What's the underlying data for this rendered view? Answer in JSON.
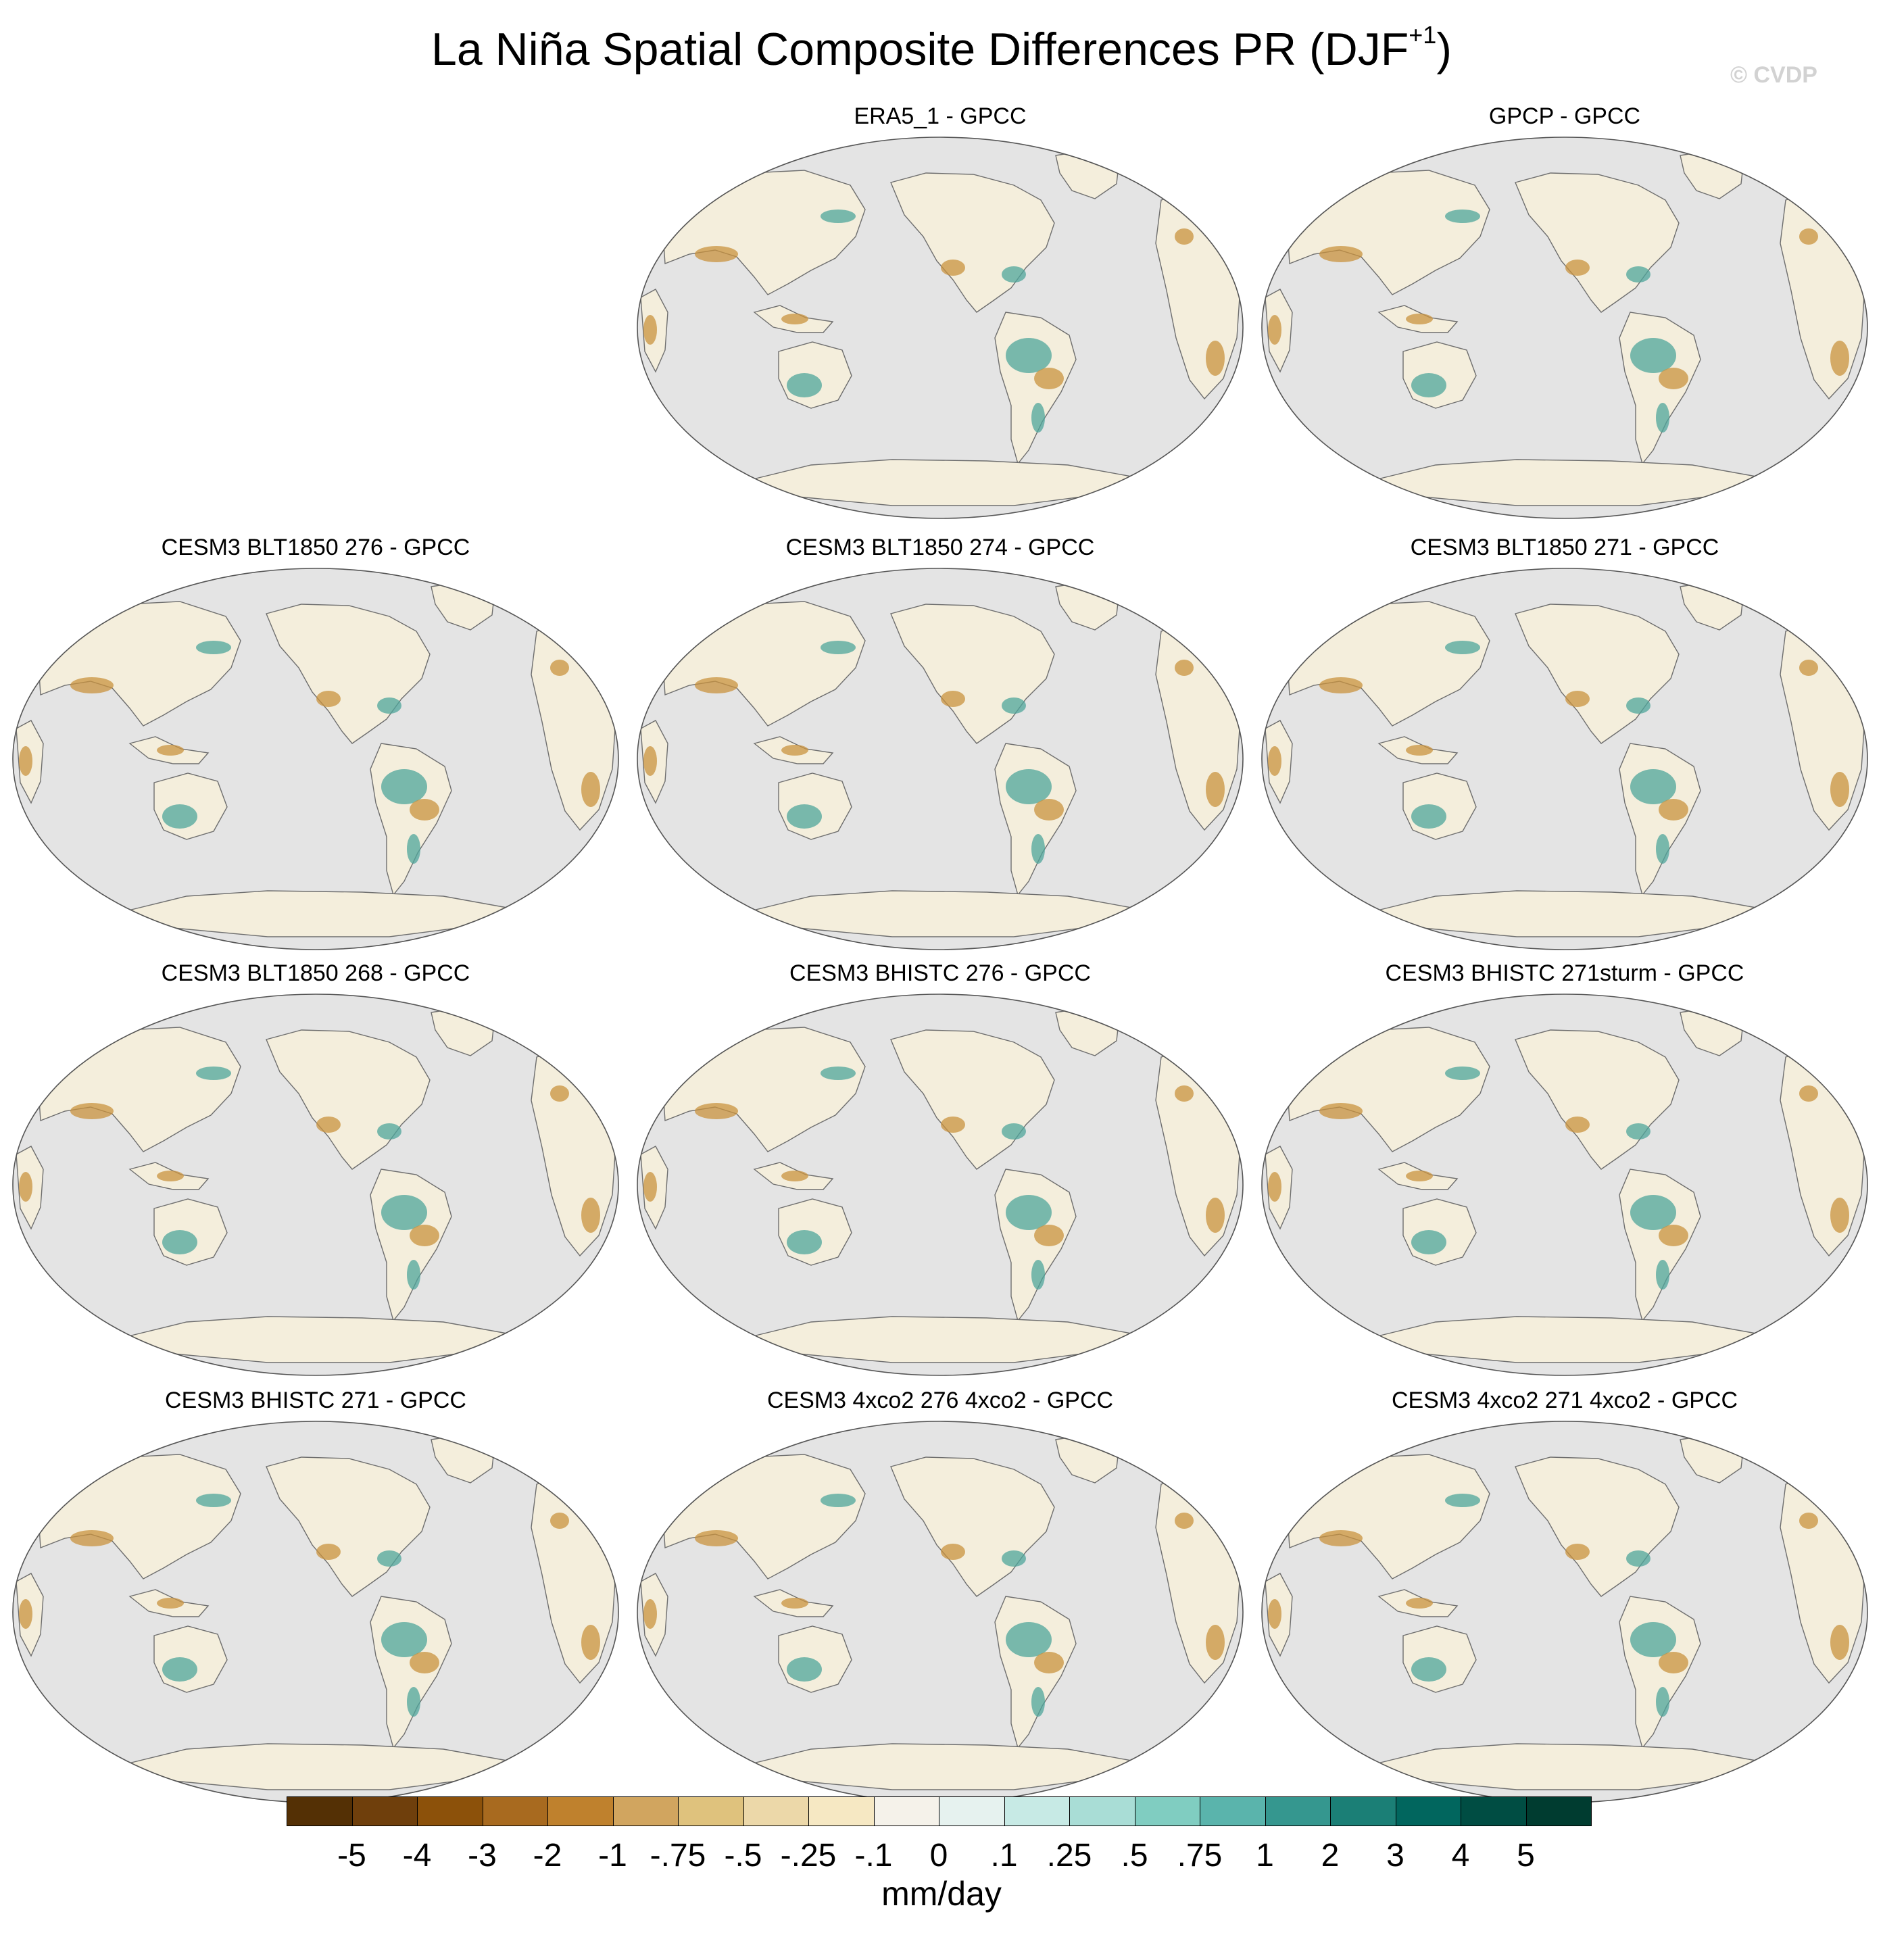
{
  "figure": {
    "title_main": "La Niña Spatial Composite Differences PR (DJF",
    "title_sup": "+1",
    "title_end": ")",
    "copyright": "© CVDP"
  },
  "panels": [
    {
      "title": "ERA5_1 - GPCC"
    },
    {
      "title": "GPCP - GPCC"
    },
    {
      "title": "CESM3 BLT1850 276 - GPCC"
    },
    {
      "title": "CESM3 BLT1850 274 - GPCC"
    },
    {
      "title": "CESM3 BLT1850 271 - GPCC"
    },
    {
      "title": "CESM3 BLT1850 268 - GPCC"
    },
    {
      "title": "CESM3 BHISTC 276 - GPCC"
    },
    {
      "title": "CESM3 BHISTC 271sturm - GPCC"
    },
    {
      "title": "CESM3 BHISTC 271 - GPCC"
    },
    {
      "title": "CESM3 4xco2 276 4xco2 - GPCC"
    },
    {
      "title": "CESM3 4xco2 271 4xco2 - GPCC"
    }
  ],
  "colorbar": {
    "units": "mm/day",
    "labels": [
      "-5",
      "-4",
      "-3",
      "-2",
      "-1",
      "-.75",
      "-.5",
      "-.25",
      "-.1",
      "0",
      ".1",
      ".25",
      ".5",
      ".75",
      "1",
      "2",
      "3",
      "4",
      "5"
    ],
    "colors": [
      "#543005",
      "#6f3f0c",
      "#8c510a",
      "#a86a1f",
      "#bf812d",
      "#d1a55f",
      "#dfc27d",
      "#ecd8a9",
      "#f6e8c3",
      "#f5f2ea",
      "#e6f2ef",
      "#c7eae5",
      "#a9ddd6",
      "#80cdc1",
      "#5ab4ac",
      "#35978f",
      "#1b7f76",
      "#01665e",
      "#004d43",
      "#003c30"
    ]
  },
  "map_colors": {
    "ocean": "#e4e4e4",
    "land_base": "#f4eedc",
    "dry": "#c9933f",
    "wet": "#4fa69b",
    "coast": "#6e6e6e"
  }
}
